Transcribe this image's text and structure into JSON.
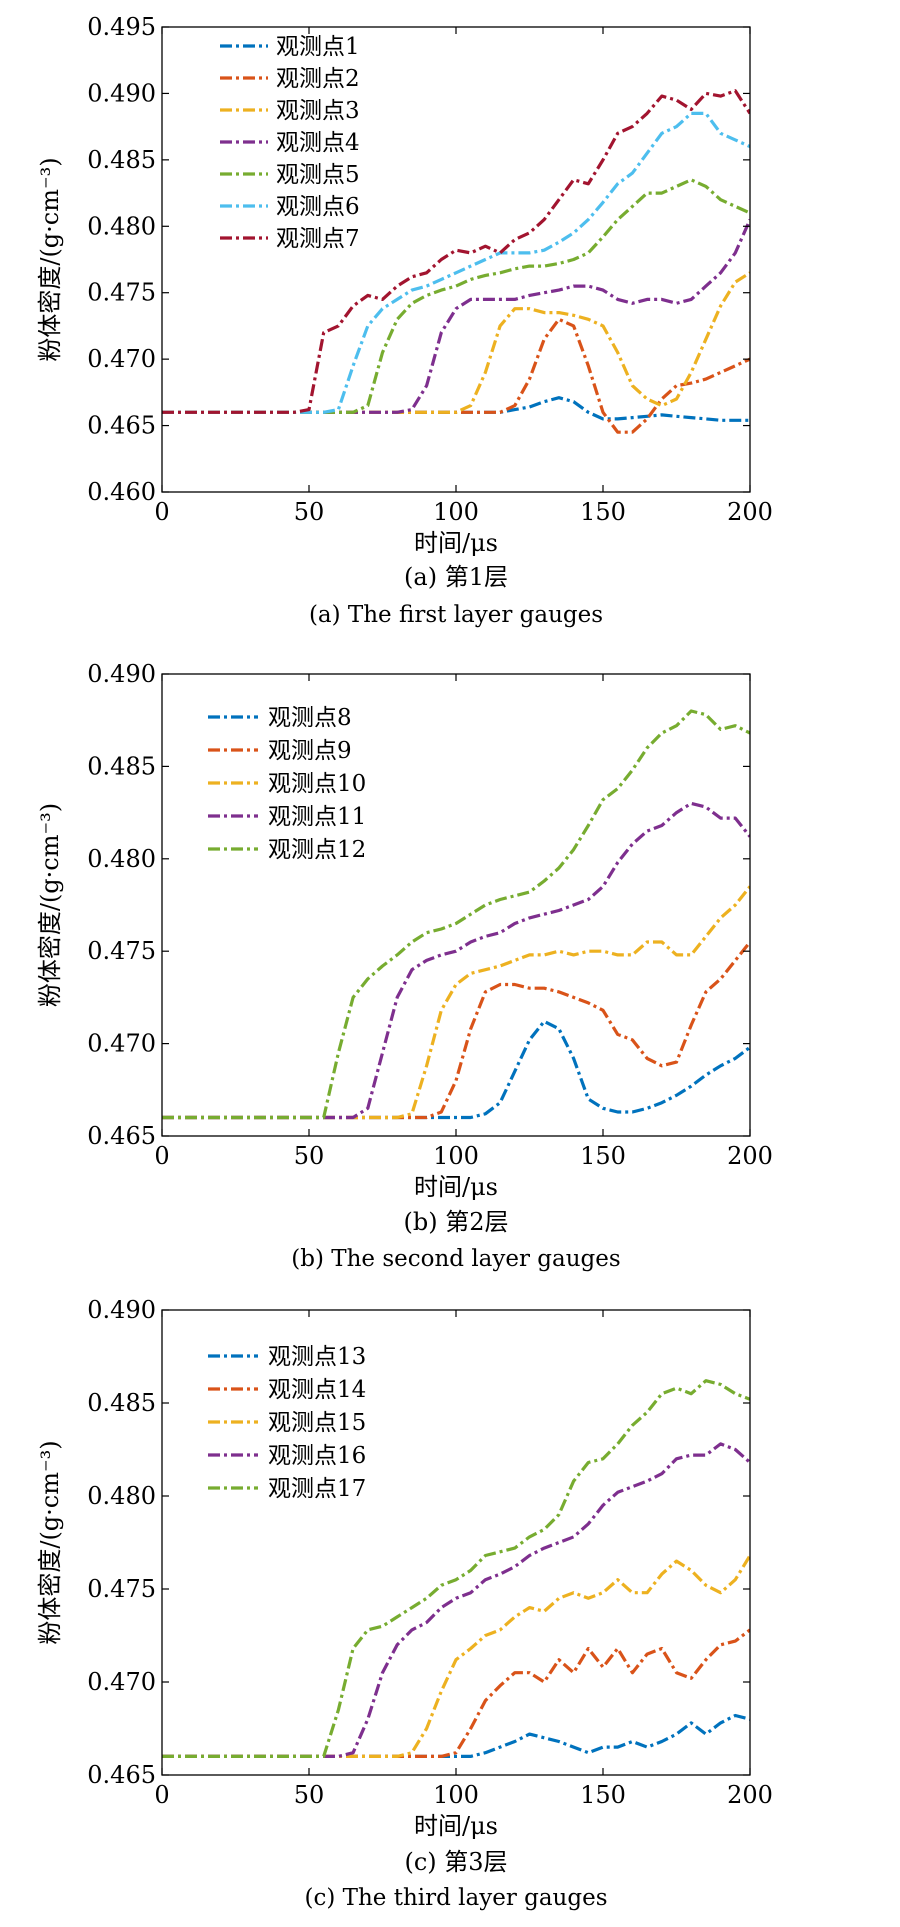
{
  "figure": {
    "colors": {
      "blue": "#0072BD",
      "orange": "#D95319",
      "yellow": "#EDB120",
      "purple": "#7E2F8E",
      "green": "#77AC30",
      "cyan": "#4DBEEE",
      "maroon": "#A2142F"
    }
  },
  "chart_data": [
    {
      "type": "line",
      "xlabel": "时间/μs",
      "ylabel": "粉体密度/(g·cm⁻³)",
      "caption_cn": "(a) 第1层",
      "caption_en": "(a) The first layer gauges",
      "xlim": [
        0,
        200
      ],
      "ylim": [
        0.46,
        0.495
      ],
      "xticks": [
        "0",
        "50",
        "100",
        "150",
        "200"
      ],
      "yticks": [
        "0.460",
        "0.465",
        "0.470",
        "0.475",
        "0.480",
        "0.485",
        "0.490",
        "0.495"
      ],
      "x": [
        0,
        5,
        10,
        15,
        20,
        25,
        30,
        35,
        40,
        45,
        50,
        55,
        60,
        65,
        70,
        75,
        80,
        85,
        90,
        95,
        100,
        105,
        110,
        115,
        120,
        125,
        130,
        135,
        140,
        145,
        150,
        155,
        160,
        165,
        170,
        175,
        180,
        185,
        190,
        195,
        200
      ],
      "series": [
        {
          "name": "观测点1",
          "color": "blue",
          "values": [
            0.466,
            0.466,
            0.466,
            0.466,
            0.466,
            0.466,
            0.466,
            0.466,
            0.466,
            0.466,
            0.466,
            0.466,
            0.466,
            0.466,
            0.466,
            0.466,
            0.466,
            0.466,
            0.466,
            0.466,
            0.466,
            0.466,
            0.466,
            0.466,
            0.4662,
            0.4664,
            0.4668,
            0.4671,
            0.4668,
            0.466,
            0.4655,
            0.4655,
            0.4656,
            0.4657,
            0.4658,
            0.4657,
            0.4656,
            0.4655,
            0.4654,
            0.4654,
            0.4654
          ]
        },
        {
          "name": "观测点2",
          "color": "orange",
          "values": [
            0.466,
            0.466,
            0.466,
            0.466,
            0.466,
            0.466,
            0.466,
            0.466,
            0.466,
            0.466,
            0.466,
            0.466,
            0.466,
            0.466,
            0.466,
            0.466,
            0.466,
            0.466,
            0.466,
            0.466,
            0.466,
            0.466,
            0.466,
            0.466,
            0.4665,
            0.4685,
            0.4715,
            0.473,
            0.4725,
            0.4695,
            0.466,
            0.4645,
            0.4645,
            0.4655,
            0.467,
            0.468,
            0.4682,
            0.4685,
            0.469,
            0.4695,
            0.47
          ]
        },
        {
          "name": "观测点3",
          "color": "yellow",
          "values": [
            0.466,
            0.466,
            0.466,
            0.466,
            0.466,
            0.466,
            0.466,
            0.466,
            0.466,
            0.466,
            0.466,
            0.466,
            0.466,
            0.466,
            0.466,
            0.466,
            0.466,
            0.466,
            0.466,
            0.466,
            0.466,
            0.4665,
            0.469,
            0.4725,
            0.4738,
            0.4738,
            0.4735,
            0.4735,
            0.4733,
            0.473,
            0.4725,
            0.4705,
            0.468,
            0.467,
            0.4665,
            0.467,
            0.469,
            0.4715,
            0.474,
            0.4758,
            0.4765
          ]
        },
        {
          "name": "观测点4",
          "color": "purple",
          "values": [
            0.466,
            0.466,
            0.466,
            0.466,
            0.466,
            0.466,
            0.466,
            0.466,
            0.466,
            0.466,
            0.466,
            0.466,
            0.466,
            0.466,
            0.466,
            0.466,
            0.466,
            0.4662,
            0.468,
            0.472,
            0.4738,
            0.4745,
            0.4745,
            0.4745,
            0.4745,
            0.4748,
            0.475,
            0.4752,
            0.4755,
            0.4755,
            0.4752,
            0.4745,
            0.4742,
            0.4745,
            0.4745,
            0.4742,
            0.4745,
            0.4755,
            0.4765,
            0.478,
            0.4805
          ]
        },
        {
          "name": "观测点5",
          "color": "green",
          "values": [
            0.466,
            0.466,
            0.466,
            0.466,
            0.466,
            0.466,
            0.466,
            0.466,
            0.466,
            0.466,
            0.466,
            0.466,
            0.466,
            0.466,
            0.4665,
            0.4705,
            0.473,
            0.4742,
            0.4748,
            0.4752,
            0.4755,
            0.476,
            0.4763,
            0.4765,
            0.4768,
            0.477,
            0.477,
            0.4772,
            0.4775,
            0.478,
            0.4792,
            0.4805,
            0.4815,
            0.4825,
            0.4825,
            0.483,
            0.4835,
            0.483,
            0.482,
            0.4815,
            0.481
          ]
        },
        {
          "name": "观测点6",
          "color": "cyan",
          "values": [
            0.466,
            0.466,
            0.466,
            0.466,
            0.466,
            0.466,
            0.466,
            0.466,
            0.466,
            0.466,
            0.466,
            0.466,
            0.4662,
            0.4695,
            0.4725,
            0.4738,
            0.4745,
            0.4752,
            0.4755,
            0.476,
            0.4765,
            0.477,
            0.4775,
            0.478,
            0.478,
            0.478,
            0.4782,
            0.4788,
            0.4795,
            0.4805,
            0.4818,
            0.4832,
            0.484,
            0.4855,
            0.487,
            0.4875,
            0.4885,
            0.4885,
            0.487,
            0.4865,
            0.486
          ]
        },
        {
          "name": "观测点7",
          "color": "maroon",
          "values": [
            0.466,
            0.466,
            0.466,
            0.466,
            0.466,
            0.466,
            0.466,
            0.466,
            0.466,
            0.466,
            0.4662,
            0.472,
            0.4725,
            0.474,
            0.4748,
            0.4745,
            0.4755,
            0.4762,
            0.4765,
            0.4775,
            0.4782,
            0.478,
            0.4785,
            0.478,
            0.479,
            0.4795,
            0.4805,
            0.482,
            0.4835,
            0.4832,
            0.485,
            0.487,
            0.4875,
            0.4885,
            0.4898,
            0.4895,
            0.4888,
            0.49,
            0.4898,
            0.4902,
            0.4885
          ]
        }
      ]
    },
    {
      "type": "line",
      "xlabel": "时间/μs",
      "ylabel": "粉体密度/(g·cm⁻³)",
      "caption_cn": "(b) 第2层",
      "caption_en": "(b) The second layer gauges",
      "xlim": [
        0,
        200
      ],
      "ylim": [
        0.465,
        0.49
      ],
      "xticks": [
        "0",
        "50",
        "100",
        "150",
        "200"
      ],
      "yticks": [
        "0.465",
        "0.470",
        "0.475",
        "0.480",
        "0.485",
        "0.490"
      ],
      "x": [
        0,
        5,
        10,
        15,
        20,
        25,
        30,
        35,
        40,
        45,
        50,
        55,
        60,
        65,
        70,
        75,
        80,
        85,
        90,
        95,
        100,
        105,
        110,
        115,
        120,
        125,
        130,
        135,
        140,
        145,
        150,
        155,
        160,
        165,
        170,
        175,
        180,
        185,
        190,
        195,
        200
      ],
      "series": [
        {
          "name": "观测点8",
          "color": "blue",
          "values": [
            0.466,
            0.466,
            0.466,
            0.466,
            0.466,
            0.466,
            0.466,
            0.466,
            0.466,
            0.466,
            0.466,
            0.466,
            0.466,
            0.466,
            0.466,
            0.466,
            0.466,
            0.466,
            0.466,
            0.466,
            0.466,
            0.466,
            0.4662,
            0.4668,
            0.4685,
            0.4702,
            0.4712,
            0.4708,
            0.4692,
            0.467,
            0.4665,
            0.4663,
            0.4663,
            0.4665,
            0.4668,
            0.4672,
            0.4677,
            0.4683,
            0.4688,
            0.4692,
            0.4698
          ]
        },
        {
          "name": "观测点9",
          "color": "orange",
          "values": [
            0.466,
            0.466,
            0.466,
            0.466,
            0.466,
            0.466,
            0.466,
            0.466,
            0.466,
            0.466,
            0.466,
            0.466,
            0.466,
            0.466,
            0.466,
            0.466,
            0.466,
            0.466,
            0.466,
            0.4663,
            0.468,
            0.4708,
            0.4728,
            0.4732,
            0.4732,
            0.473,
            0.473,
            0.4728,
            0.4725,
            0.4722,
            0.4718,
            0.4705,
            0.4702,
            0.4692,
            0.4688,
            0.469,
            0.471,
            0.4728,
            0.4735,
            0.4745,
            0.4755
          ]
        },
        {
          "name": "观测点10",
          "color": "yellow",
          "values": [
            0.466,
            0.466,
            0.466,
            0.466,
            0.466,
            0.466,
            0.466,
            0.466,
            0.466,
            0.466,
            0.466,
            0.466,
            0.466,
            0.466,
            0.466,
            0.466,
            0.466,
            0.4662,
            0.4688,
            0.4718,
            0.4732,
            0.4738,
            0.474,
            0.4742,
            0.4745,
            0.4748,
            0.4748,
            0.475,
            0.4748,
            0.475,
            0.475,
            0.4748,
            0.4748,
            0.4755,
            0.4755,
            0.4748,
            0.4748,
            0.4758,
            0.4768,
            0.4775,
            0.4785
          ]
        },
        {
          "name": "观测点11",
          "color": "purple",
          "values": [
            0.466,
            0.466,
            0.466,
            0.466,
            0.466,
            0.466,
            0.466,
            0.466,
            0.466,
            0.466,
            0.466,
            0.466,
            0.466,
            0.466,
            0.4665,
            0.4695,
            0.4725,
            0.474,
            0.4745,
            0.4748,
            0.475,
            0.4755,
            0.4758,
            0.476,
            0.4765,
            0.4768,
            0.477,
            0.4772,
            0.4775,
            0.4778,
            0.4785,
            0.4798,
            0.4808,
            0.4815,
            0.4818,
            0.4825,
            0.483,
            0.4828,
            0.4822,
            0.4822,
            0.4812
          ]
        },
        {
          "name": "观测点12",
          "color": "green",
          "values": [
            0.466,
            0.466,
            0.466,
            0.466,
            0.466,
            0.466,
            0.466,
            0.466,
            0.466,
            0.466,
            0.466,
            0.466,
            0.4695,
            0.4725,
            0.4735,
            0.4742,
            0.4748,
            0.4755,
            0.476,
            0.4762,
            0.4765,
            0.477,
            0.4775,
            0.4778,
            0.478,
            0.4782,
            0.4788,
            0.4795,
            0.4805,
            0.4818,
            0.4832,
            0.4838,
            0.4848,
            0.486,
            0.4868,
            0.4872,
            0.488,
            0.4878,
            0.487,
            0.4872,
            0.4868
          ]
        }
      ]
    },
    {
      "type": "line",
      "xlabel": "时间/μs",
      "ylabel": "粉体密度/(g·cm⁻³)",
      "caption_cn": "(c)  第3层",
      "caption_en": "(c) The third layer gauges",
      "xlim": [
        0,
        200
      ],
      "ylim": [
        0.465,
        0.49
      ],
      "xticks": [
        "0",
        "50",
        "100",
        "150",
        "200"
      ],
      "yticks": [
        "0.465",
        "0.470",
        "0.475",
        "0.480",
        "0.485",
        "0.490"
      ],
      "x": [
        0,
        5,
        10,
        15,
        20,
        25,
        30,
        35,
        40,
        45,
        50,
        55,
        60,
        65,
        70,
        75,
        80,
        85,
        90,
        95,
        100,
        105,
        110,
        115,
        120,
        125,
        130,
        135,
        140,
        145,
        150,
        155,
        160,
        165,
        170,
        175,
        180,
        185,
        190,
        195,
        200
      ],
      "series": [
        {
          "name": "观测点13",
          "color": "blue",
          "values": [
            0.466,
            0.466,
            0.466,
            0.466,
            0.466,
            0.466,
            0.466,
            0.466,
            0.466,
            0.466,
            0.466,
            0.466,
            0.466,
            0.466,
            0.466,
            0.466,
            0.466,
            0.466,
            0.466,
            0.466,
            0.466,
            0.466,
            0.4662,
            0.4665,
            0.4668,
            0.4672,
            0.467,
            0.4668,
            0.4665,
            0.4662,
            0.4665,
            0.4665,
            0.4668,
            0.4665,
            0.4668,
            0.4672,
            0.4678,
            0.4672,
            0.4678,
            0.4682,
            0.468
          ]
        },
        {
          "name": "观测点14",
          "color": "orange",
          "values": [
            0.466,
            0.466,
            0.466,
            0.466,
            0.466,
            0.466,
            0.466,
            0.466,
            0.466,
            0.466,
            0.466,
            0.466,
            0.466,
            0.466,
            0.466,
            0.466,
            0.466,
            0.466,
            0.466,
            0.466,
            0.4662,
            0.4675,
            0.469,
            0.4698,
            0.4705,
            0.4705,
            0.47,
            0.4712,
            0.4705,
            0.4718,
            0.4708,
            0.4718,
            0.4705,
            0.4715,
            0.4718,
            0.4705,
            0.4702,
            0.4712,
            0.472,
            0.4722,
            0.4728
          ]
        },
        {
          "name": "观测点15",
          "color": "yellow",
          "values": [
            0.466,
            0.466,
            0.466,
            0.466,
            0.466,
            0.466,
            0.466,
            0.466,
            0.466,
            0.466,
            0.466,
            0.466,
            0.466,
            0.466,
            0.466,
            0.466,
            0.466,
            0.4662,
            0.4675,
            0.4695,
            0.4712,
            0.4718,
            0.4725,
            0.4728,
            0.4735,
            0.474,
            0.4738,
            0.4745,
            0.4748,
            0.4745,
            0.4748,
            0.4755,
            0.4748,
            0.4748,
            0.4758,
            0.4765,
            0.476,
            0.4752,
            0.4748,
            0.4755,
            0.4768
          ]
        },
        {
          "name": "观测点16",
          "color": "purple",
          "values": [
            0.466,
            0.466,
            0.466,
            0.466,
            0.466,
            0.466,
            0.466,
            0.466,
            0.466,
            0.466,
            0.466,
            0.466,
            0.466,
            0.4662,
            0.468,
            0.4705,
            0.472,
            0.4728,
            0.4732,
            0.474,
            0.4745,
            0.4748,
            0.4755,
            0.4758,
            0.4762,
            0.4768,
            0.4772,
            0.4775,
            0.4778,
            0.4785,
            0.4795,
            0.4802,
            0.4805,
            0.4808,
            0.4812,
            0.482,
            0.4822,
            0.4822,
            0.4828,
            0.4825,
            0.4818
          ]
        },
        {
          "name": "观测点17",
          "color": "green",
          "values": [
            0.466,
            0.466,
            0.466,
            0.466,
            0.466,
            0.466,
            0.466,
            0.466,
            0.466,
            0.466,
            0.466,
            0.466,
            0.4685,
            0.4718,
            0.4728,
            0.473,
            0.4735,
            0.474,
            0.4745,
            0.4752,
            0.4755,
            0.476,
            0.4768,
            0.477,
            0.4772,
            0.4778,
            0.4782,
            0.479,
            0.4808,
            0.4818,
            0.482,
            0.4828,
            0.4838,
            0.4845,
            0.4855,
            0.4858,
            0.4855,
            0.4862,
            0.486,
            0.4855,
            0.4852
          ]
        }
      ]
    }
  ]
}
